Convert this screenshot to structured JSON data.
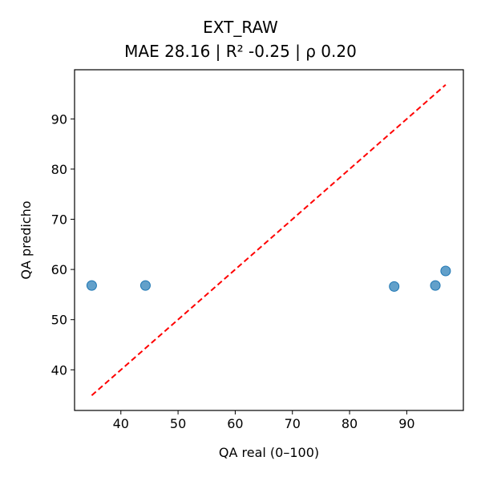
{
  "chart_data": {
    "type": "scatter",
    "title": "EXT_RAW",
    "subtitle": "MAE 28.16 | R² -0.25 | ρ 0.20",
    "xlabel": "QA real (0–100)",
    "ylabel": "QA predicho",
    "xlim": [
      31.9,
      99.9
    ],
    "ylim": [
      31.9,
      99.8
    ],
    "xticks": [
      40,
      50,
      60,
      70,
      80,
      90
    ],
    "yticks": [
      40,
      50,
      60,
      70,
      80,
      90
    ],
    "grid": false,
    "points": [
      {
        "x": 34.9,
        "y": 56.8
      },
      {
        "x": 44.3,
        "y": 56.8
      },
      {
        "x": 87.8,
        "y": 56.6
      },
      {
        "x": 95.0,
        "y": 56.8
      },
      {
        "x": 96.8,
        "y": 59.7
      }
    ],
    "reference_line": {
      "x": [
        34.9,
        96.8
      ],
      "y": [
        34.9,
        96.8
      ],
      "style": "dashed",
      "color": "#ff0000"
    },
    "point_color": "#1f77b4"
  }
}
